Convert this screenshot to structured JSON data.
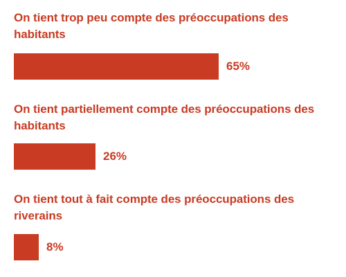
{
  "colors": {
    "bar": "#c93b23",
    "text": "#c93b23",
    "background": "#ffffff"
  },
  "chart_data": {
    "type": "bar",
    "orientation": "horizontal",
    "title": "",
    "xlabel": "",
    "ylabel": "",
    "xlim": [
      0,
      100
    ],
    "grid": false,
    "legend": "none",
    "categories": [
      "On tient trop peu compte des préoccupations des habitants",
      "On tient partiellement compte des préoccupations des habitants",
      "On tient tout à fait compte des préoccupations des riverains"
    ],
    "values": [
      65,
      26,
      8
    ],
    "value_labels": [
      "65%",
      "26%",
      "8%"
    ]
  }
}
